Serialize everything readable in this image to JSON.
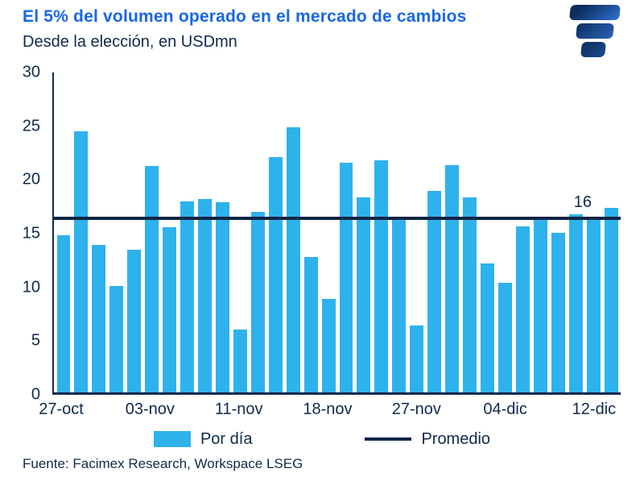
{
  "header": {
    "title": "El 5% del volumen operado en el mercado de cambios",
    "subtitle": "Desde la elección, en USDmn"
  },
  "chart_data": {
    "type": "bar",
    "title": "El 5% del volumen operado en el mercado de cambios",
    "subtitle": "Desde la elección, en USDmn",
    "values": [
      14.7,
      24.5,
      13.8,
      10.0,
      13.4,
      21.2,
      15.5,
      17.9,
      18.1,
      17.8,
      5.9,
      16.9,
      22.1,
      24.9,
      12.7,
      8.8,
      21.5,
      18.3,
      21.8,
      16.4,
      6.3,
      18.9,
      21.3,
      18.3,
      12.1,
      10.3,
      15.6,
      16.4,
      15.0,
      16.7,
      16.4,
      17.3
    ],
    "x_tick_labels": [
      "27-oct",
      "03-nov",
      "11-nov",
      "18-nov",
      "27-nov",
      "04-dic",
      "12-dic"
    ],
    "x_tick_indices": [
      0,
      5,
      10,
      15,
      20,
      25,
      30
    ],
    "y_ticks": [
      0,
      5,
      10,
      15,
      20,
      25,
      30
    ],
    "ylim": [
      0,
      30
    ],
    "grid": false,
    "legend_position": "bottom",
    "series_name": "Por día",
    "average_line": {
      "value": 16.3,
      "label": "16",
      "name": "Promedio"
    }
  },
  "legend": {
    "bar_label": "Por día",
    "line_label": "Promedio"
  },
  "footer": {
    "source": "Fuente: Facimex Research, Workspace LSEG"
  },
  "colors": {
    "bar": "#2EB2EC",
    "average_line": "#0B2545",
    "title": "#1967E2",
    "text": "#10294D"
  },
  "logo": {
    "name": "Facimex"
  }
}
